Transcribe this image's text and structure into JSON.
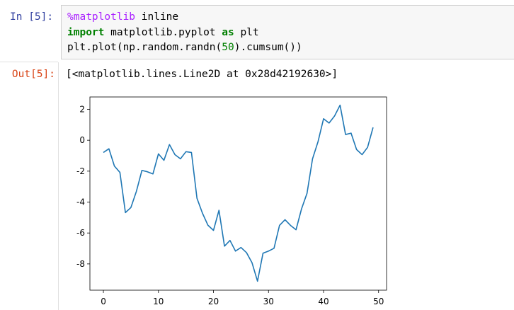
{
  "input_cell": {
    "prompt": "In [5]:",
    "code_lines": [
      [
        "%matplotlib",
        " inline"
      ],
      [
        "import",
        " matplotlib.pyplot ",
        "as",
        " plt"
      ],
      [
        "plt.plot(np.random.randn(",
        "50",
        ").cumsum())"
      ]
    ]
  },
  "output_cell": {
    "prompt": "Out[5]:",
    "text": "[<matplotlib.lines.Line2D at 0x28d42192630>]"
  },
  "chart_data": {
    "type": "line",
    "x": [
      0,
      1,
      2,
      3,
      4,
      5,
      6,
      7,
      8,
      9,
      10,
      11,
      12,
      13,
      14,
      15,
      16,
      17,
      18,
      19,
      20,
      21,
      22,
      23,
      24,
      25,
      26,
      27,
      28,
      29,
      30,
      31,
      32,
      33,
      34,
      35,
      36,
      37,
      38,
      39,
      40,
      41,
      42,
      43,
      44,
      45,
      46,
      47,
      48,
      49
    ],
    "values": [
      -0.79,
      -0.55,
      -1.67,
      -2.08,
      -4.68,
      -4.35,
      -3.3,
      -1.95,
      -2.04,
      -2.18,
      -0.88,
      -1.3,
      -0.28,
      -0.93,
      -1.2,
      -0.74,
      -0.79,
      -3.75,
      -4.72,
      -5.5,
      -5.83,
      -4.53,
      -6.85,
      -6.48,
      -7.17,
      -6.94,
      -7.27,
      -7.92,
      -9.12,
      -7.31,
      -7.17,
      -6.99,
      -5.51,
      -5.14,
      -5.51,
      -5.79,
      -4.44,
      -3.43,
      -1.2,
      -0.09,
      1.39,
      1.11,
      1.57,
      2.27,
      0.37,
      0.46,
      -0.6,
      -0.93,
      -0.46,
      0.83
    ],
    "color": "#1f77b4",
    "xlim": [
      -2.45,
      51.45
    ],
    "xticks": [
      0,
      10,
      20,
      30,
      40,
      50
    ],
    "ylim": [
      -9.7,
      2.8
    ],
    "yticks": [
      -8,
      -6,
      -4,
      -2,
      0,
      2
    ],
    "grid": false
  }
}
